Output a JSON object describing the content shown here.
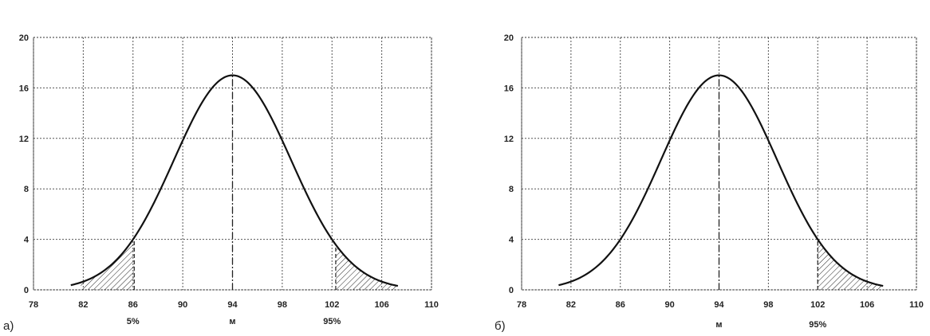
{
  "chart_data": [
    {
      "type": "line",
      "panel_label": "а)",
      "x_ticks": [
        "78",
        "82",
        "86",
        "90",
        "94",
        "98",
        "102",
        "106",
        "110"
      ],
      "y_ticks": [
        "0",
        "4",
        "8",
        "12",
        "16",
        "20"
      ],
      "xlim": [
        78,
        110
      ],
      "ylim": [
        0,
        20
      ],
      "grid": true,
      "mean": 94,
      "sigma": 4.7,
      "peak": 17,
      "curve_x_range": [
        81,
        107.3
      ],
      "shaded_regions": [
        [
          81.8,
          86.1
        ],
        [
          102.3,
          107.3
        ]
      ],
      "under_labels": [
        {
          "text": "5%",
          "x": 86
        },
        {
          "text": "м",
          "x": 94
        },
        {
          "text": "95%",
          "x": 102
        }
      ]
    },
    {
      "type": "line",
      "panel_label": "б)",
      "x_ticks": [
        "78",
        "82",
        "86",
        "90",
        "94",
        "98",
        "102",
        "106",
        "110"
      ],
      "y_ticks": [
        "0",
        "4",
        "8",
        "12",
        "16",
        "20"
      ],
      "xlim": [
        78,
        110
      ],
      "ylim": [
        0,
        20
      ],
      "grid": true,
      "mean": 94,
      "sigma": 4.7,
      "peak": 17,
      "curve_x_range": [
        81,
        107.3
      ],
      "shaded_regions": [
        [
          102.0,
          107.3
        ]
      ],
      "under_labels": [
        {
          "text": "м",
          "x": 94
        },
        {
          "text": "95%",
          "x": 102
        }
      ]
    }
  ]
}
